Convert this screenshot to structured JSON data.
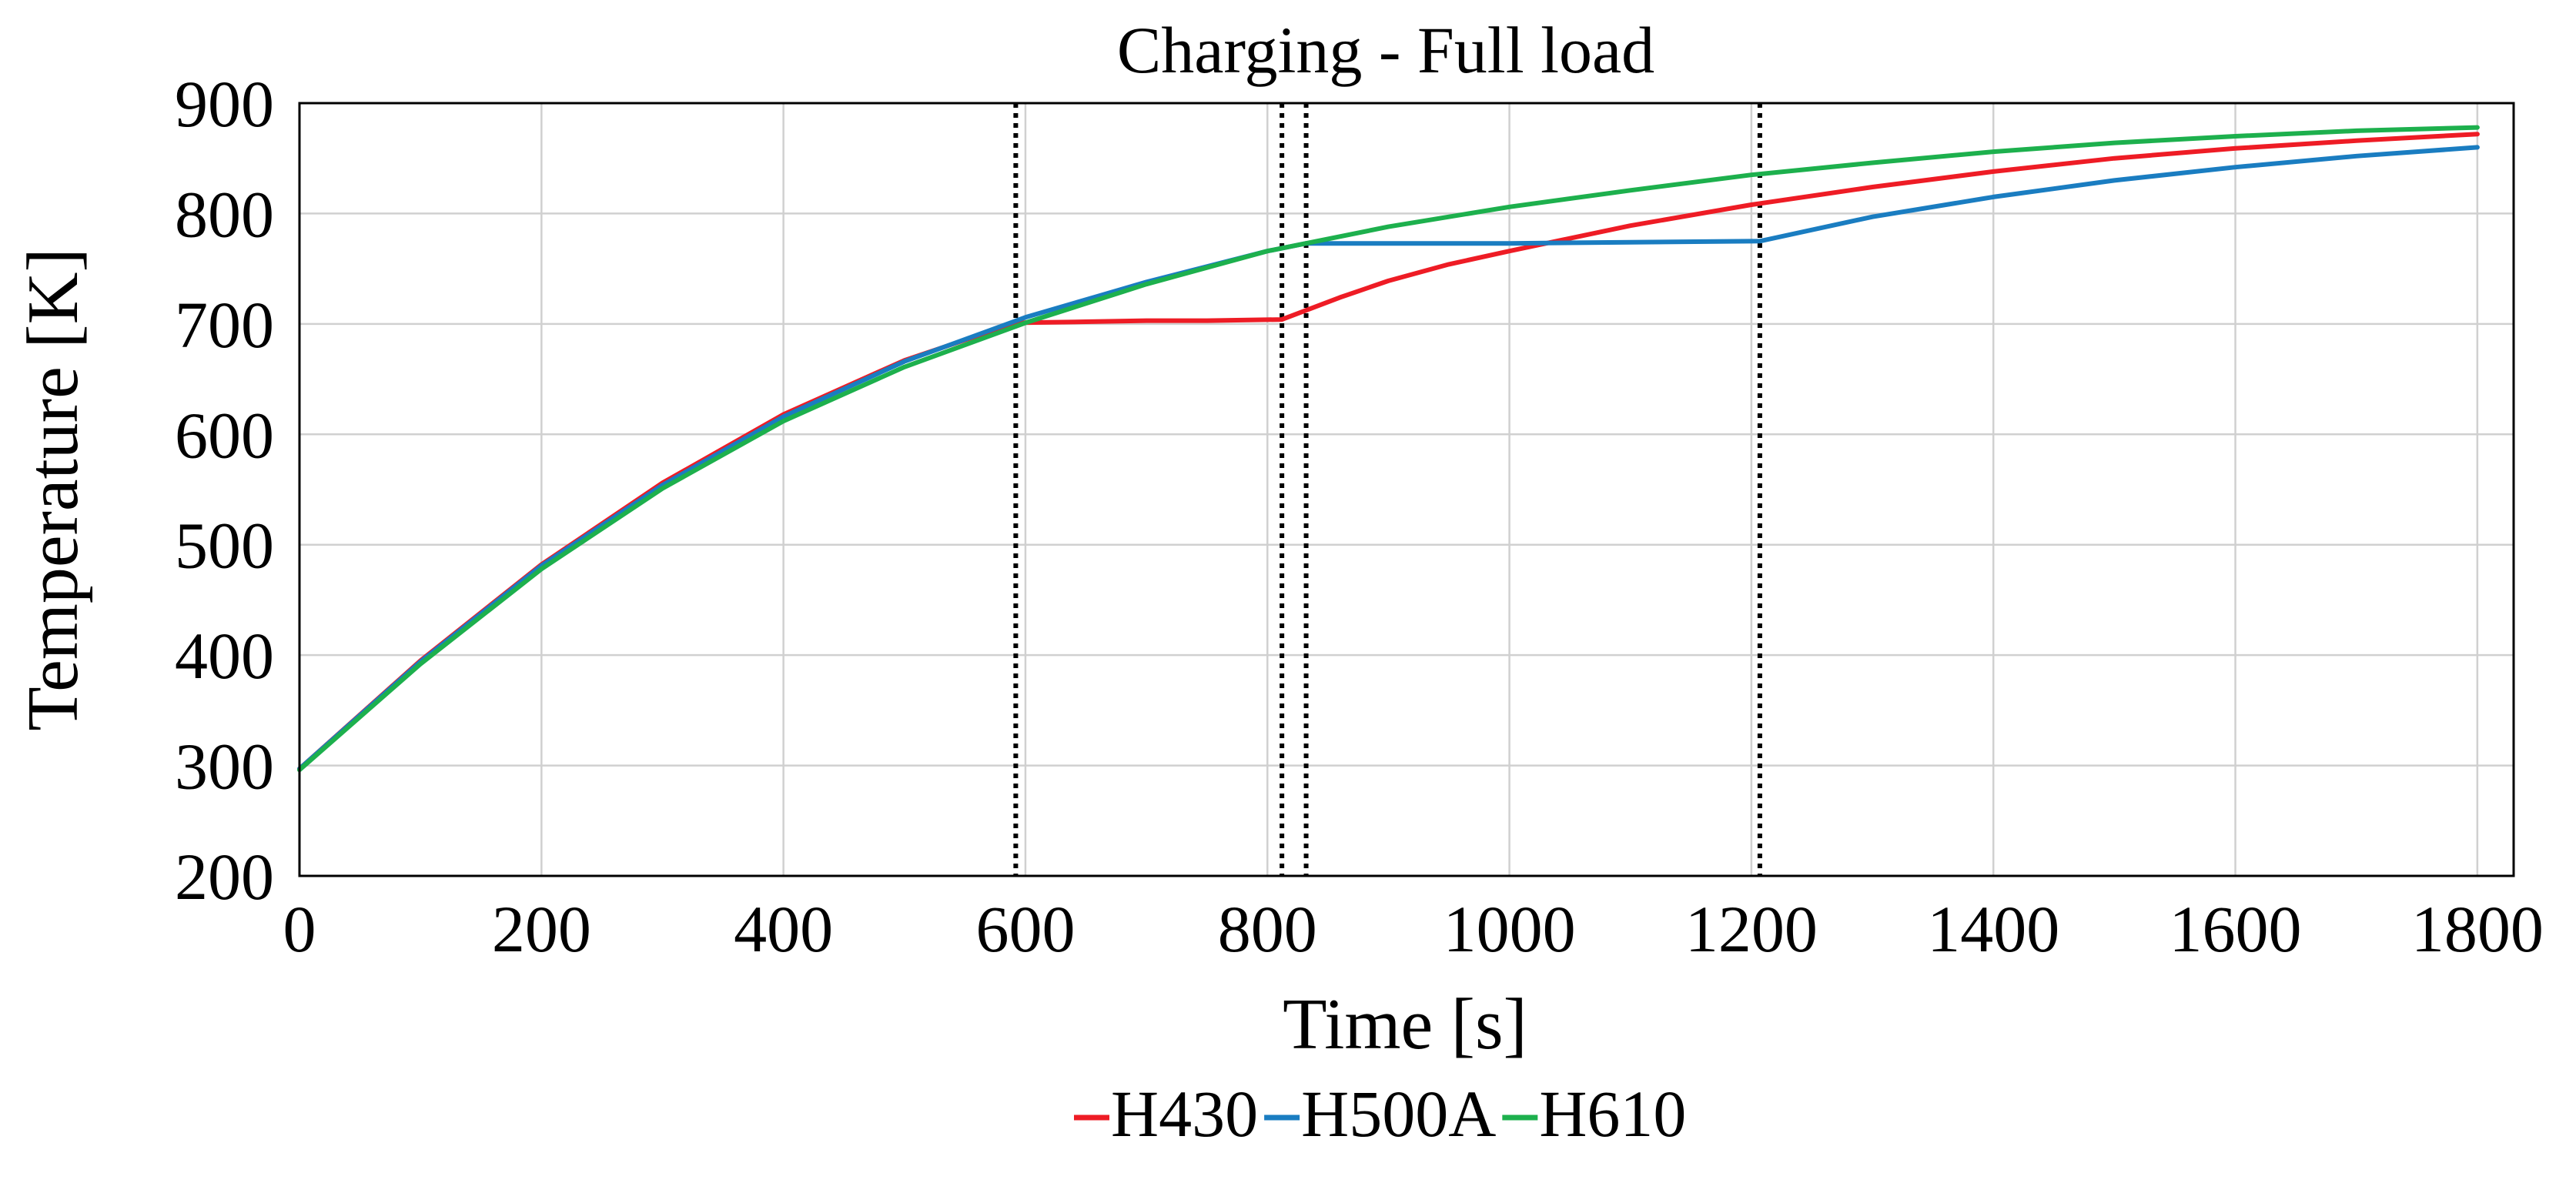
{
  "chart_data": {
    "type": "line",
    "title": "Charging - Full load",
    "xlabel": "Time [s]",
    "ylabel": "Temperature [K]",
    "xlim": [
      0,
      1830
    ],
    "ylim": [
      200,
      900
    ],
    "xticks": [
      0,
      200,
      400,
      600,
      800,
      1000,
      1200,
      1400,
      1600,
      1800
    ],
    "yticks": [
      200,
      300,
      400,
      500,
      600,
      700,
      800,
      900
    ],
    "xtick_labels": [
      "0",
      "200",
      "400",
      "600",
      "800",
      "1000",
      "1200",
      "1400",
      "1600",
      "1800"
    ],
    "ytick_labels": [
      "200",
      "300",
      "400",
      "500",
      "600",
      "700",
      "800",
      "900"
    ],
    "grid": true,
    "legend_position": "bottom-center",
    "vertical_markers": [
      592,
      812,
      832,
      1207
    ],
    "series": [
      {
        "name": "H430",
        "color": "#ee1c25",
        "x": [
          0,
          100,
          200,
          300,
          400,
          500,
          592,
          650,
          700,
          750,
          812,
          860,
          900,
          950,
          1000,
          1100,
          1200,
          1300,
          1400,
          1500,
          1600,
          1700,
          1800
        ],
        "y": [
          297,
          395,
          482,
          556,
          618,
          667,
          701,
          702,
          703,
          703,
          704,
          724,
          739,
          754,
          766,
          789,
          808,
          824,
          838,
          850,
          859,
          866,
          872
        ]
      },
      {
        "name": "H500A",
        "color": "#1a7dc1",
        "x": [
          0,
          100,
          200,
          300,
          400,
          500,
          600,
          700,
          800,
          832,
          900,
          1000,
          1100,
          1207,
          1300,
          1400,
          1500,
          1600,
          1700,
          1800
        ],
        "y": [
          297,
          394,
          481,
          554,
          616,
          666,
          706,
          738,
          766,
          773,
          773,
          773,
          774,
          775,
          797,
          815,
          830,
          842,
          852,
          860
        ]
      },
      {
        "name": "H610",
        "color": "#1db04d",
        "x": [
          0,
          100,
          200,
          300,
          400,
          500,
          600,
          700,
          800,
          900,
          1000,
          1100,
          1200,
          1300,
          1400,
          1500,
          1600,
          1700,
          1800
        ],
        "y": [
          296,
          392,
          478,
          551,
          612,
          661,
          701,
          736,
          766,
          788,
          806,
          821,
          835,
          846,
          856,
          864,
          870,
          875,
          878
        ]
      }
    ]
  }
}
